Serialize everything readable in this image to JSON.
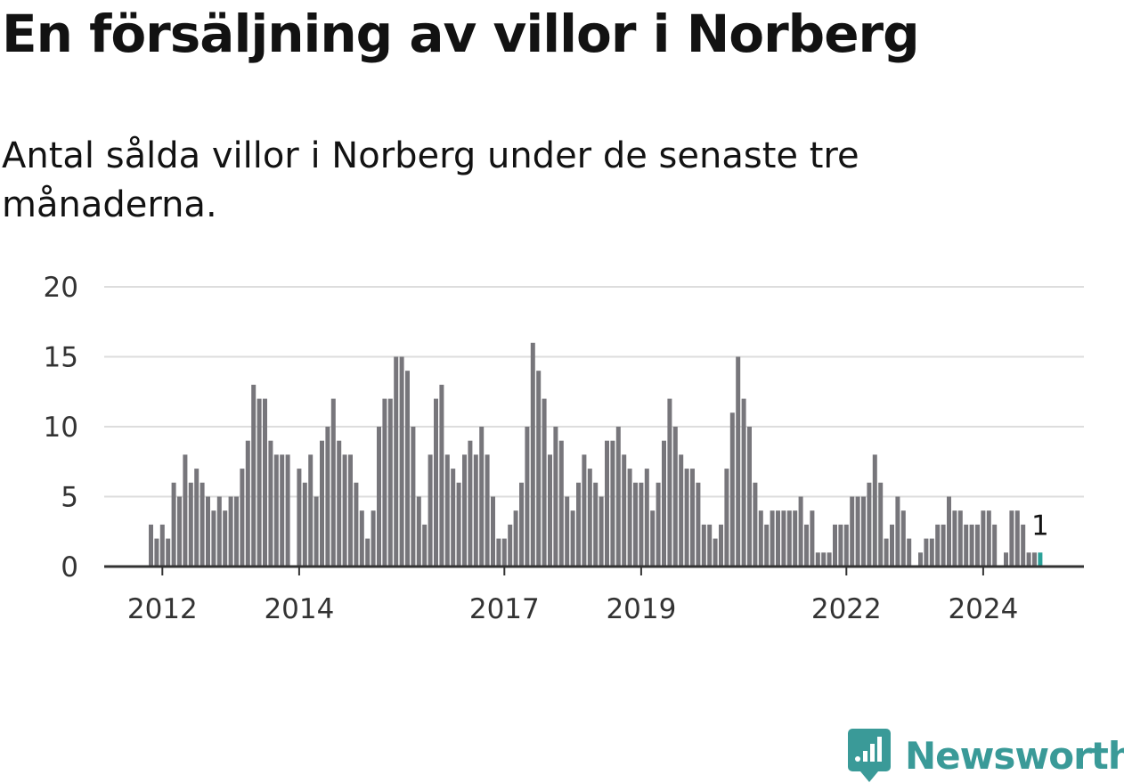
{
  "header": {
    "title": "En försäljning av villor i Norberg",
    "subtitle": "Antal sålda villor i Norberg under de senaste tre månaderna."
  },
  "brand": {
    "name": "Newsworthy",
    "logo_icon": "newsworthy-chart-bubble-icon",
    "color": "#3a9a98"
  },
  "chart_data": {
    "type": "bar",
    "x_start": "2011-11",
    "frequency": "monthly",
    "y_ticks": [
      0,
      5,
      10,
      15,
      20
    ],
    "ylim": [
      0,
      20
    ],
    "x_ticks": [
      {
        "label": "2012",
        "date": "2012-01"
      },
      {
        "label": "2014",
        "date": "2014-01"
      },
      {
        "label": "2017",
        "date": "2017-01"
      },
      {
        "label": "2019",
        "date": "2019-01"
      },
      {
        "label": "2022",
        "date": "2022-01"
      },
      {
        "label": "2024",
        "date": "2024-01"
      }
    ],
    "values": [
      3,
      2,
      3,
      2,
      6,
      5,
      8,
      6,
      7,
      6,
      5,
      4,
      5,
      4,
      5,
      5,
      7,
      9,
      13,
      12,
      12,
      9,
      8,
      8,
      8,
      0,
      7,
      6,
      8,
      5,
      9,
      10,
      12,
      9,
      8,
      8,
      6,
      4,
      2,
      4,
      10,
      12,
      12,
      15,
      15,
      14,
      10,
      5,
      3,
      8,
      12,
      13,
      8,
      7,
      6,
      8,
      9,
      8,
      10,
      8,
      5,
      2,
      2,
      3,
      4,
      6,
      10,
      16,
      14,
      12,
      8,
      10,
      9,
      5,
      4,
      6,
      8,
      7,
      6,
      5,
      9,
      9,
      10,
      8,
      7,
      6,
      6,
      7,
      4,
      6,
      9,
      12,
      10,
      8,
      7,
      7,
      6,
      3,
      3,
      2,
      3,
      7,
      11,
      15,
      12,
      10,
      6,
      4,
      3,
      4,
      4,
      4,
      4,
      4,
      5,
      3,
      4,
      1,
      1,
      1,
      3,
      3,
      3,
      5,
      5,
      5,
      6,
      8,
      6,
      2,
      3,
      5,
      4,
      2,
      0,
      1,
      2,
      2,
      3,
      3,
      5,
      4,
      4,
      3,
      3,
      3,
      4,
      4,
      3,
      0,
      1,
      4,
      4,
      3,
      1,
      1,
      1
    ],
    "last_value_label": "1",
    "bar_color": "#77767b",
    "highlight_color": "#2aa198",
    "grid": true,
    "grid_color": "#dddddd",
    "axis_color": "#333333"
  }
}
